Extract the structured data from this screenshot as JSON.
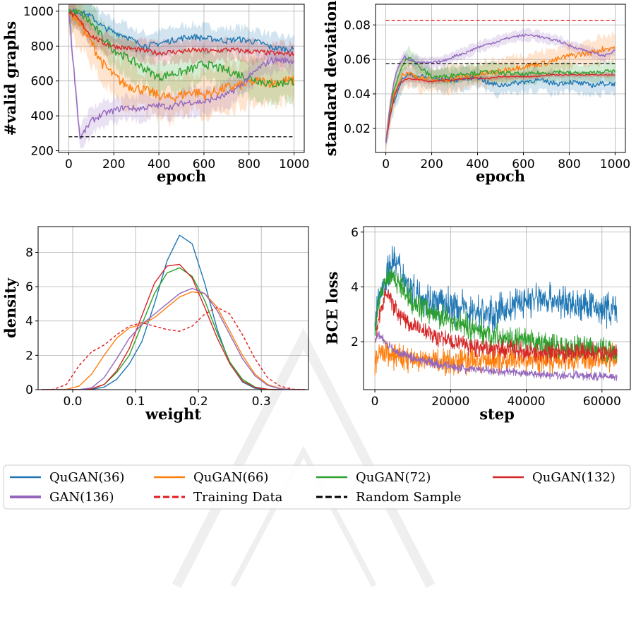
{
  "legend": {
    "placement": "bottom",
    "entries": [
      {
        "key": "q36",
        "label": "QuGAN(36)",
        "color": "#1f77b4",
        "style": "solid"
      },
      {
        "key": "q66",
        "label": "QuGAN(66)",
        "color": "#ff7f0e",
        "style": "solid"
      },
      {
        "key": "q72",
        "label": "QuGAN(72)",
        "color": "#2ca02c",
        "style": "solid"
      },
      {
        "key": "q132",
        "label": "QuGAN(132)",
        "color": "#d62728",
        "style": "solid"
      },
      {
        "key": "gan136",
        "label": "GAN(136)",
        "color": "#9467bd",
        "style": "solid"
      },
      {
        "key": "train",
        "label": "Training Data",
        "color": "#e31a1c",
        "style": "dashed"
      },
      {
        "key": "rand",
        "label": "Random Sample",
        "color": "#000000",
        "style": "dashed"
      }
    ]
  },
  "chart_data": [
    {
      "id": "valid",
      "type": "line",
      "xlabel": "epoch",
      "ylabel": "#valid graphs",
      "xlim": [
        -45,
        1045
      ],
      "ylim": [
        190,
        1040
      ],
      "xticks": [
        0,
        200,
        400,
        600,
        800,
        1000
      ],
      "yticks": [
        200,
        400,
        600,
        800,
        1000
      ],
      "grid": true,
      "x": [
        0,
        50,
        100,
        150,
        200,
        250,
        300,
        350,
        400,
        450,
        500,
        550,
        600,
        650,
        700,
        750,
        800,
        850,
        900,
        950,
        1000
      ],
      "series": [
        {
          "key": "q36",
          "values": [
            1000,
            995,
            970,
            910,
            880,
            860,
            820,
            800,
            815,
            830,
            845,
            855,
            845,
            840,
            830,
            840,
            830,
            820,
            790,
            785,
            780
          ],
          "band": 70
        },
        {
          "key": "q66",
          "values": [
            1000,
            930,
            820,
            700,
            630,
            580,
            560,
            540,
            520,
            500,
            520,
            540,
            520,
            540,
            560,
            570,
            590,
            600,
            590,
            600,
            600
          ],
          "band": 120
        },
        {
          "key": "q72",
          "values": [
            1000,
            990,
            930,
            850,
            780,
            740,
            700,
            660,
            620,
            640,
            650,
            670,
            700,
            680,
            660,
            640,
            620,
            600,
            580,
            590,
            600
          ],
          "band": 100
        },
        {
          "key": "q132",
          "values": [
            1000,
            940,
            860,
            820,
            800,
            790,
            780,
            770,
            760,
            765,
            770,
            775,
            775,
            770,
            780,
            775,
            770,
            765,
            760,
            755,
            755
          ],
          "band": 60
        },
        {
          "key": "gan136",
          "values": [
            1000,
            270,
            370,
            410,
            430,
            450,
            440,
            450,
            460,
            450,
            470,
            480,
            480,
            500,
            520,
            560,
            620,
            680,
            720,
            720,
            710
          ],
          "band": 70
        }
      ],
      "reference_lines": [
        {
          "key": "rand",
          "y": 280,
          "x_range": [
            0,
            1000
          ]
        }
      ]
    },
    {
      "id": "std",
      "type": "line",
      "xlabel": "epoch",
      "ylabel": "standard deviation",
      "xlim": [
        -45,
        1045
      ],
      "ylim": [
        0.006,
        0.092
      ],
      "xticks": [
        0,
        200,
        400,
        600,
        800,
        1000
      ],
      "yticks": [
        0.02,
        0.04,
        0.06,
        0.08
      ],
      "grid": true,
      "x": [
        0,
        20,
        40,
        60,
        80,
        100,
        150,
        200,
        250,
        300,
        350,
        400,
        450,
        500,
        550,
        600,
        650,
        700,
        750,
        800,
        850,
        900,
        950,
        1000
      ],
      "series": [
        {
          "key": "q36",
          "values": [
            0.012,
            0.028,
            0.038,
            0.045,
            0.05,
            0.051,
            0.05,
            0.049,
            0.048,
            0.048,
            0.049,
            0.05,
            0.046,
            0.045,
            0.046,
            0.047,
            0.048,
            0.047,
            0.046,
            0.047,
            0.046,
            0.045,
            0.046,
            0.046
          ],
          "band": 0.006
        },
        {
          "key": "q66",
          "values": [
            0.012,
            0.03,
            0.042,
            0.048,
            0.052,
            0.052,
            0.049,
            0.048,
            0.048,
            0.049,
            0.05,
            0.051,
            0.052,
            0.053,
            0.055,
            0.056,
            0.057,
            0.058,
            0.06,
            0.062,
            0.063,
            0.064,
            0.066,
            0.067
          ],
          "band": 0.007
        },
        {
          "key": "q72",
          "values": [
            0.012,
            0.032,
            0.045,
            0.052,
            0.058,
            0.062,
            0.055,
            0.05,
            0.05,
            0.051,
            0.052,
            0.052,
            0.053,
            0.052,
            0.052,
            0.051,
            0.052,
            0.052,
            0.053,
            0.052,
            0.052,
            0.052,
            0.053,
            0.053
          ],
          "band": 0.005
        },
        {
          "key": "q132",
          "values": [
            0.012,
            0.028,
            0.04,
            0.046,
            0.048,
            0.049,
            0.048,
            0.047,
            0.048,
            0.048,
            0.049,
            0.049,
            0.049,
            0.05,
            0.05,
            0.05,
            0.05,
            0.051,
            0.051,
            0.051,
            0.051,
            0.051,
            0.051,
            0.051
          ],
          "band": 0.0015
        },
        {
          "key": "gan136",
          "values": [
            0.012,
            0.035,
            0.05,
            0.057,
            0.062,
            0.06,
            0.058,
            0.058,
            0.059,
            0.062,
            0.064,
            0.067,
            0.069,
            0.071,
            0.073,
            0.074,
            0.074,
            0.072,
            0.071,
            0.068,
            0.066,
            0.064,
            0.062,
            0.065
          ],
          "band": 0.003
        }
      ],
      "reference_lines": [
        {
          "key": "train",
          "y": 0.0825,
          "x_range": [
            0,
            1000
          ]
        },
        {
          "key": "rand",
          "y": 0.0575,
          "x_range": [
            0,
            1000
          ]
        }
      ]
    },
    {
      "id": "density",
      "type": "line",
      "xlabel": "weight",
      "ylabel": "density",
      "xlim": [
        -0.055,
        0.375
      ],
      "ylim": [
        0,
        9.5
      ],
      "xticks": [
        0.0,
        0.1,
        0.2,
        0.3
      ],
      "xtick_labels": [
        "0.0",
        "0.1",
        "0.2",
        "0.3"
      ],
      "yticks": [
        0,
        2,
        4,
        6,
        8
      ],
      "grid": true,
      "x": [
        -0.05,
        -0.03,
        -0.01,
        0.01,
        0.03,
        0.05,
        0.07,
        0.09,
        0.11,
        0.13,
        0.15,
        0.17,
        0.19,
        0.21,
        0.23,
        0.25,
        0.27,
        0.29,
        0.31,
        0.33,
        0.35,
        0.37
      ],
      "series": [
        {
          "key": "q36",
          "values": [
            0,
            0,
            0,
            0,
            0.02,
            0.15,
            0.6,
            1.5,
            2.8,
            5.0,
            7.5,
            9.0,
            8.5,
            6.2,
            3.5,
            1.5,
            0.45,
            0.08,
            0.01,
            0,
            0,
            0
          ]
        },
        {
          "key": "q66",
          "values": [
            0,
            0,
            0.02,
            0.2,
            0.9,
            2.0,
            3.0,
            3.6,
            3.8,
            4.2,
            4.8,
            5.4,
            5.7,
            5.6,
            4.8,
            3.4,
            2.0,
            0.9,
            0.3,
            0.06,
            0.01,
            0
          ]
        },
        {
          "key": "q72",
          "values": [
            0,
            0,
            0,
            0.01,
            0.05,
            0.3,
            1.0,
            2.0,
            3.8,
            5.6,
            6.8,
            7.1,
            6.6,
            5.2,
            3.3,
            1.6,
            0.6,
            0.15,
            0.02,
            0,
            0,
            0
          ]
        },
        {
          "key": "q132",
          "values": [
            0,
            0,
            0,
            0.01,
            0.05,
            0.3,
            1.1,
            2.4,
            4.3,
            6.2,
            7.2,
            7.3,
            6.5,
            4.8,
            3.0,
            1.5,
            0.5,
            0.12,
            0.02,
            0,
            0,
            0
          ]
        },
        {
          "key": "gan136",
          "values": [
            0,
            0,
            0,
            0.01,
            0.1,
            0.7,
            1.8,
            3.0,
            3.8,
            4.4,
            5.0,
            5.6,
            5.9,
            5.6,
            4.6,
            3.2,
            1.8,
            0.8,
            0.25,
            0.05,
            0.01,
            0
          ]
        },
        {
          "key": "train",
          "values": [
            0,
            0.02,
            0.3,
            1.4,
            2.2,
            2.6,
            3.2,
            3.7,
            3.9,
            3.7,
            3.5,
            3.4,
            3.7,
            4.4,
            4.8,
            4.4,
            3.2,
            1.8,
            0.7,
            0.2,
            0.03,
            0
          ]
        }
      ]
    },
    {
      "id": "bce",
      "type": "line",
      "xlabel": "step",
      "ylabel": "BCE loss",
      "xlim": [
        -3000,
        67500
      ],
      "ylim": [
        0.25,
        6.2
      ],
      "xticks": [
        0,
        20000,
        40000,
        60000
      ],
      "yticks": [
        2,
        4,
        6
      ],
      "grid": true,
      "x": [
        0,
        1000,
        2000,
        3000,
        4000,
        5000,
        6000,
        8000,
        10000,
        13000,
        16000,
        20000,
        25000,
        30000,
        35000,
        40000,
        45000,
        50000,
        55000,
        60000,
        64000
      ],
      "series": [
        {
          "key": "q36",
          "values": [
            2.6,
            3.5,
            4.0,
            4.4,
            4.8,
            5.0,
            4.8,
            4.3,
            3.9,
            3.6,
            3.4,
            3.3,
            3.15,
            3.0,
            3.2,
            3.5,
            3.6,
            3.4,
            3.3,
            3.2,
            3.2
          ],
          "noise": 0.55
        },
        {
          "key": "q66",
          "values": [
            1.2,
            1.4,
            1.6,
            1.6,
            1.55,
            1.5,
            1.45,
            1.4,
            1.35,
            1.3,
            1.3,
            1.3,
            1.3,
            1.3,
            1.35,
            1.35,
            1.35,
            1.4,
            1.4,
            1.4,
            1.4
          ],
          "noise": 0.45
        },
        {
          "key": "q72",
          "values": [
            2.2,
            3.5,
            4.0,
            4.3,
            4.5,
            4.4,
            4.2,
            3.8,
            3.5,
            3.2,
            3.0,
            2.8,
            2.5,
            2.3,
            2.1,
            2.0,
            1.9,
            1.8,
            1.75,
            1.7,
            1.7
          ],
          "noise": 0.4
        },
        {
          "key": "q132",
          "values": [
            2.0,
            2.8,
            3.4,
            3.8,
            3.6,
            3.3,
            3.1,
            2.8,
            2.6,
            2.4,
            2.2,
            2.0,
            1.85,
            1.75,
            1.7,
            1.65,
            1.6,
            1.6,
            1.6,
            1.6,
            1.6
          ],
          "noise": 0.3
        },
        {
          "key": "gan136",
          "values": [
            2.0,
            2.3,
            2.1,
            1.9,
            1.8,
            1.7,
            1.6,
            1.5,
            1.4,
            1.3,
            1.2,
            1.1,
            1.0,
            0.95,
            0.9,
            0.85,
            0.8,
            0.78,
            0.75,
            0.74,
            0.73
          ],
          "noise": 0.15
        }
      ]
    }
  ]
}
